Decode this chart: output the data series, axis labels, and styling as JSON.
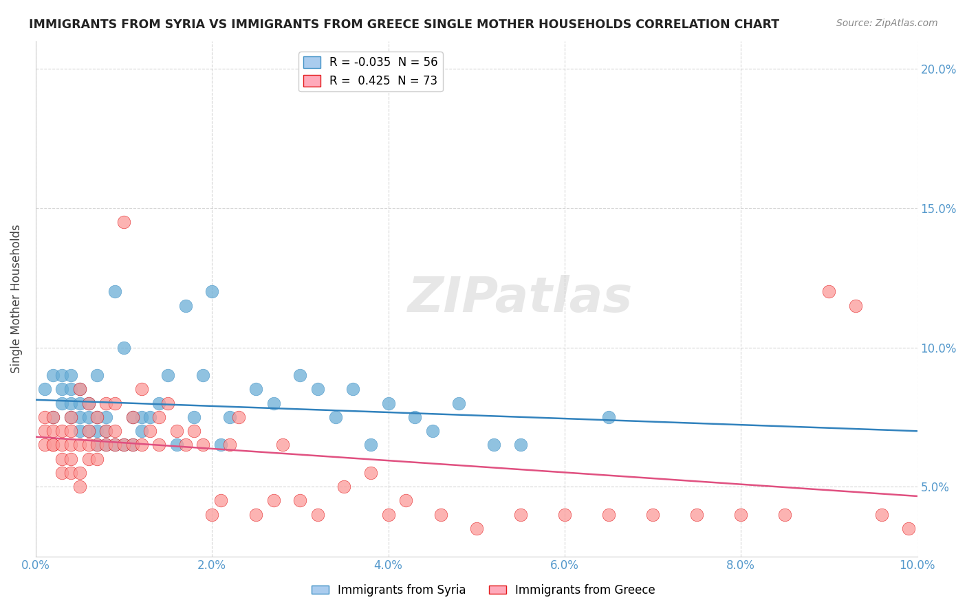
{
  "title": "IMMIGRANTS FROM SYRIA VS IMMIGRANTS FROM GREECE SINGLE MOTHER HOUSEHOLDS CORRELATION CHART",
  "source": "Source: ZipAtlas.com",
  "xlabel": "",
  "ylabel": "Single Mother Households",
  "series": [
    {
      "label": "Immigrants from Syria",
      "color": "#6baed6",
      "edge_color": "#4292c6",
      "R": -0.035,
      "N": 56,
      "line_color": "#3182bd",
      "x": [
        0.001,
        0.002,
        0.002,
        0.003,
        0.003,
        0.003,
        0.004,
        0.004,
        0.004,
        0.004,
        0.005,
        0.005,
        0.005,
        0.005,
        0.006,
        0.006,
        0.006,
        0.007,
        0.007,
        0.007,
        0.007,
        0.008,
        0.008,
        0.008,
        0.009,
        0.009,
        0.01,
        0.01,
        0.011,
        0.011,
        0.012,
        0.012,
        0.013,
        0.014,
        0.015,
        0.016,
        0.017,
        0.018,
        0.019,
        0.02,
        0.021,
        0.022,
        0.025,
        0.027,
        0.03,
        0.032,
        0.034,
        0.036,
        0.038,
        0.04,
        0.043,
        0.045,
        0.048,
        0.052,
        0.055,
        0.065
      ],
      "y": [
        0.085,
        0.09,
        0.075,
        0.08,
        0.085,
        0.09,
        0.075,
        0.08,
        0.085,
        0.09,
        0.07,
        0.075,
        0.08,
        0.085,
        0.07,
        0.075,
        0.08,
        0.065,
        0.07,
        0.075,
        0.09,
        0.065,
        0.07,
        0.075,
        0.065,
        0.12,
        0.065,
        0.1,
        0.065,
        0.075,
        0.07,
        0.075,
        0.075,
        0.08,
        0.09,
        0.065,
        0.115,
        0.075,
        0.09,
        0.12,
        0.065,
        0.075,
        0.085,
        0.08,
        0.09,
        0.085,
        0.075,
        0.085,
        0.065,
        0.08,
        0.075,
        0.07,
        0.08,
        0.065,
        0.065,
        0.075
      ]
    },
    {
      "label": "Immigrants from Greece",
      "color": "#fb9a99",
      "edge_color": "#e31a1c",
      "R": 0.425,
      "N": 73,
      "line_color": "#e05080",
      "x": [
        0.001,
        0.001,
        0.001,
        0.002,
        0.002,
        0.002,
        0.002,
        0.003,
        0.003,
        0.003,
        0.003,
        0.004,
        0.004,
        0.004,
        0.004,
        0.004,
        0.005,
        0.005,
        0.005,
        0.005,
        0.006,
        0.006,
        0.006,
        0.006,
        0.007,
        0.007,
        0.007,
        0.008,
        0.008,
        0.008,
        0.009,
        0.009,
        0.009,
        0.01,
        0.01,
        0.011,
        0.011,
        0.012,
        0.012,
        0.013,
        0.014,
        0.014,
        0.015,
        0.016,
        0.017,
        0.018,
        0.019,
        0.02,
        0.021,
        0.022,
        0.023,
        0.025,
        0.027,
        0.028,
        0.03,
        0.032,
        0.035,
        0.038,
        0.04,
        0.042,
        0.046,
        0.05,
        0.055,
        0.06,
        0.065,
        0.07,
        0.075,
        0.08,
        0.085,
        0.09,
        0.093,
        0.096,
        0.099
      ],
      "y": [
        0.07,
        0.075,
        0.065,
        0.065,
        0.07,
        0.075,
        0.065,
        0.055,
        0.06,
        0.065,
        0.07,
        0.055,
        0.06,
        0.065,
        0.07,
        0.075,
        0.05,
        0.055,
        0.065,
        0.085,
        0.06,
        0.065,
        0.07,
        0.08,
        0.06,
        0.065,
        0.075,
        0.065,
        0.07,
        0.08,
        0.065,
        0.07,
        0.08,
        0.065,
        0.145,
        0.065,
        0.075,
        0.065,
        0.085,
        0.07,
        0.075,
        0.065,
        0.08,
        0.07,
        0.065,
        0.07,
        0.065,
        0.04,
        0.045,
        0.065,
        0.075,
        0.04,
        0.045,
        0.065,
        0.045,
        0.04,
        0.05,
        0.055,
        0.04,
        0.045,
        0.04,
        0.035,
        0.04,
        0.04,
        0.04,
        0.04,
        0.04,
        0.04,
        0.04,
        0.12,
        0.115,
        0.04,
        0.035
      ]
    }
  ],
  "xlim": [
    0.0,
    0.1
  ],
  "ylim": [
    0.025,
    0.21
  ],
  "xticks": [
    0.0,
    0.02,
    0.04,
    0.06,
    0.08,
    0.1
  ],
  "yticks": [
    0.05,
    0.1,
    0.15,
    0.2
  ],
  "right_ytick_labels": [
    "5.0%",
    "10.0%",
    "15.0%",
    "20.0%"
  ],
  "xtick_labels": [
    "0.0%",
    "2.0%",
    "4.0%",
    "6.0%",
    "8.0%",
    "10.0%"
  ],
  "background_color": "#ffffff",
  "grid_color": "#cccccc",
  "watermark": "ZIPatlas",
  "watermark_color": "#d0d0d0"
}
